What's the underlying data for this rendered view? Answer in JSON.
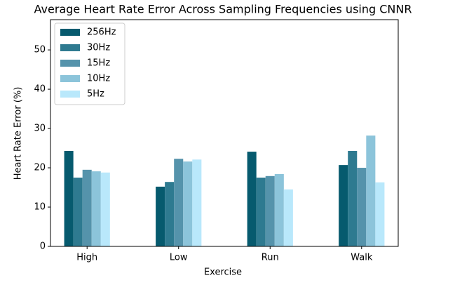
{
  "chart_data": {
    "type": "bar",
    "title": "Average Heart Rate Error Across Sampling Frequencies using CNNR",
    "x_label": "Exercise",
    "y_label": "Heart Rate Error (%)",
    "categories": [
      "High",
      "Low",
      "Run",
      "Walk"
    ],
    "series": [
      {
        "name": "256Hz",
        "color": "#065a6e",
        "values": [
          24.3,
          15.2,
          24.1,
          20.7
        ]
      },
      {
        "name": "30Hz",
        "color": "#2e7a90",
        "values": [
          17.5,
          16.4,
          17.5,
          24.3
        ]
      },
      {
        "name": "15Hz",
        "color": "#5593ab",
        "values": [
          19.5,
          22.3,
          17.9,
          20.0
        ]
      },
      {
        "name": "10Hz",
        "color": "#8cc4da",
        "values": [
          19.1,
          21.6,
          18.4,
          28.2
        ]
      },
      {
        "name": "5Hz",
        "color": "#b9e8fb",
        "values": [
          18.8,
          22.1,
          14.5,
          16.3
        ]
      }
    ],
    "ylim": [
      0,
      57.7
    ],
    "yticks": [
      0,
      10,
      20,
      30,
      40,
      50
    ],
    "legend": "upper left"
  }
}
